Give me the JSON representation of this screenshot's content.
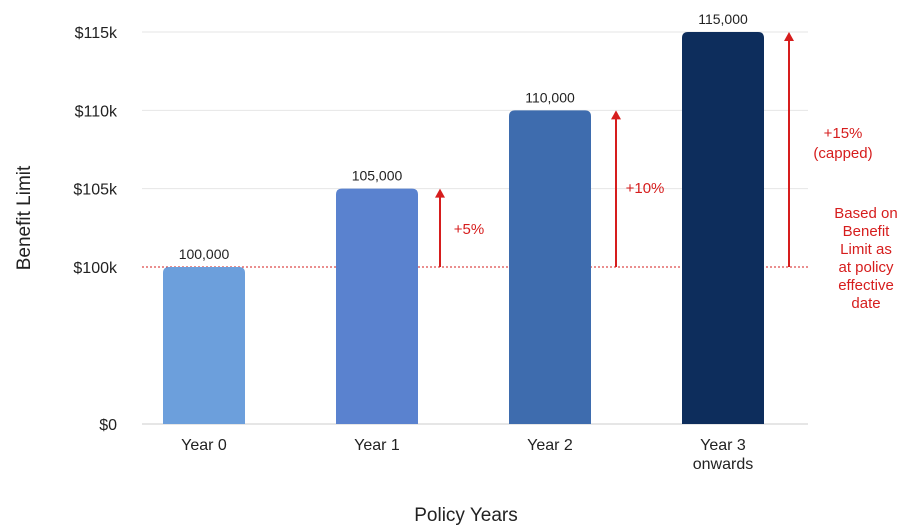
{
  "chart_data": {
    "type": "bar",
    "categories": [
      "Year 0",
      "Year 1",
      "Year 2",
      "Year 3 onwards"
    ],
    "values": [
      100000,
      105000,
      110000,
      115000
    ],
    "data_labels": [
      "100,000",
      "105,000",
      "110,000",
      "115,000"
    ],
    "bar_colors": [
      "#6c9fdc",
      "#5a82cf",
      "#3e6cae",
      "#0d2d5c"
    ],
    "y_ticks": [
      {
        "value": 0,
        "label": "$0"
      },
      {
        "value": 100000,
        "label": "$100k"
      },
      {
        "value": 105000,
        "label": "$105k"
      },
      {
        "value": 110000,
        "label": "$110k"
      },
      {
        "value": 115000,
        "label": "$115k"
      }
    ],
    "y_axis_break": {
      "from": 0,
      "to": 100000
    },
    "xlabel": "Policy Years",
    "ylabel": "Benefit Limit",
    "grid": true,
    "reference_line": {
      "value": 100000,
      "color": "#d61d1d",
      "style": "dotted"
    },
    "annotations": [
      {
        "category": "Year 1",
        "lines": [
          "+5%"
        ],
        "from": 100000,
        "to": 105000
      },
      {
        "category": "Year 2",
        "lines": [
          "+10%"
        ],
        "from": 100000,
        "to": 110000
      },
      {
        "category": "Year 3 onwards",
        "lines": [
          "+15%",
          "(capped)"
        ],
        "from": 100000,
        "to": 115000
      }
    ],
    "note_lines": [
      "Based on",
      "Benefit",
      "Limit as",
      "at policy",
      "effective",
      "date"
    ],
    "accent_color": "#d61d1d"
  }
}
